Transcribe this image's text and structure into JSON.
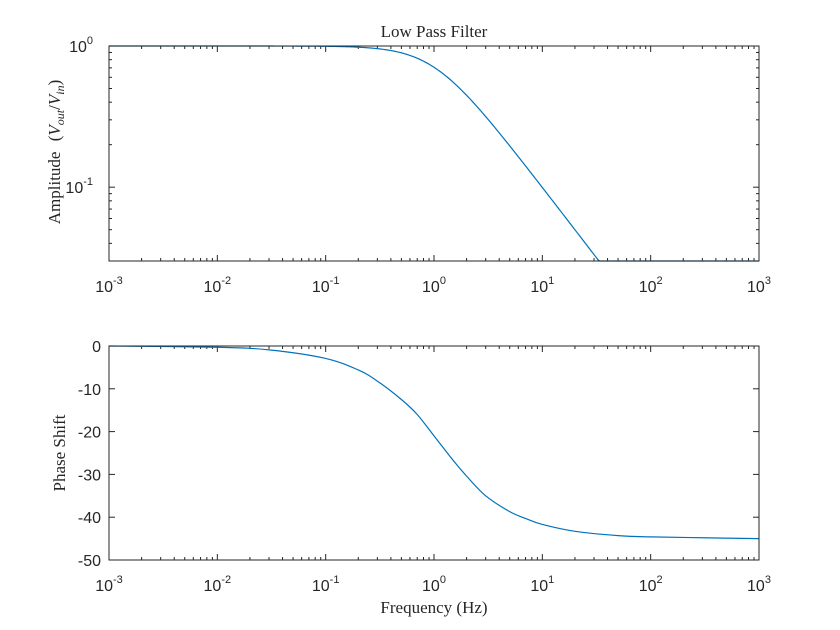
{
  "chart_data": [
    {
      "type": "line",
      "title": "Low Pass Filter",
      "ylabel": "Amplitude",
      "ylabel_math": {
        "open": "(",
        "numerator": "V",
        "numerator_sub": "out",
        "slash": "/",
        "denominator": "V",
        "denominator_sub": "in",
        "close": ")"
      },
      "xscale": "log",
      "yscale": "log",
      "xlim": [
        0.001,
        1000
      ],
      "ylim": [
        0.03,
        1.0
      ],
      "x_ticks": [
        {
          "base": "10",
          "exp": "-3"
        },
        {
          "base": "10",
          "exp": "-2"
        },
        {
          "base": "10",
          "exp": "-1"
        },
        {
          "base": "10",
          "exp": "0"
        },
        {
          "base": "10",
          "exp": "1"
        },
        {
          "base": "10",
          "exp": "2"
        },
        {
          "base": "10",
          "exp": "3"
        }
      ],
      "y_ticks": [
        {
          "base": "10",
          "exp": "0"
        },
        {
          "base": "10",
          "exp": "-1"
        }
      ],
      "grid": false,
      "series": [
        {
          "color": "#0072bd",
          "x": [
            0.001,
            0.01,
            0.1,
            0.2,
            0.3,
            0.5,
            0.7,
            1,
            1.5,
            2,
            3,
            5,
            7,
            10,
            20,
            50,
            100,
            200,
            500,
            1000
          ],
          "y": [
            1.0,
            1.0,
            0.995,
            0.981,
            0.958,
            0.894,
            0.819,
            0.707,
            0.555,
            0.447,
            0.316,
            0.196,
            0.141,
            0.0995,
            0.05,
            0.02,
            0.0316,
            0.0316,
            0.0316,
            0.0316
          ]
        }
      ]
    },
    {
      "type": "line",
      "xlabel": "Frequency (Hz)",
      "ylabel": "Phase Shift",
      "xscale": "log",
      "xlim": [
        0.001,
        1000
      ],
      "ylim": [
        -50,
        0
      ],
      "x_ticks": [
        {
          "base": "10",
          "exp": "-3"
        },
        {
          "base": "10",
          "exp": "-2"
        },
        {
          "base": "10",
          "exp": "-1"
        },
        {
          "base": "10",
          "exp": "0"
        },
        {
          "base": "10",
          "exp": "1"
        },
        {
          "base": "10",
          "exp": "2"
        },
        {
          "base": "10",
          "exp": "3"
        }
      ],
      "y_ticks": [
        "0",
        "-10",
        "-20",
        "-30",
        "-40",
        "-50"
      ],
      "grid": false,
      "series": [
        {
          "color": "#0072bd",
          "x": [
            0.001,
            0.01,
            0.03,
            0.1,
            0.2,
            0.3,
            0.5,
            0.7,
            1,
            1.5,
            2,
            3,
            5,
            7,
            10,
            20,
            50,
            100,
            300,
            1000
          ],
          "y": [
            0.0,
            -0.3,
            -0.9,
            -2.9,
            -5.6,
            -8.2,
            -12.5,
            -16.0,
            -21.0,
            -26.7,
            -30.4,
            -35.0,
            -38.7,
            -40.3,
            -41.7,
            -43.3,
            -44.3,
            -44.6,
            -44.8,
            -45.0
          ]
        }
      ]
    }
  ]
}
